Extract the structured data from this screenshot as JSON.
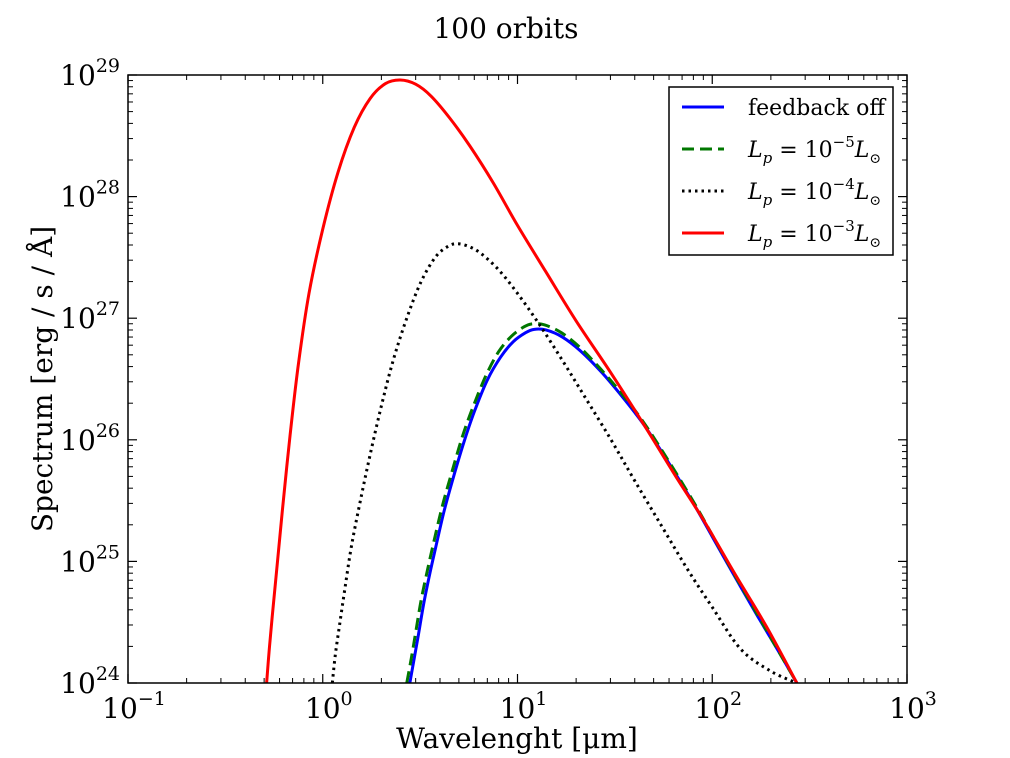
{
  "chart_data": {
    "type": "line",
    "title": "100 orbits",
    "xlabel": "Wavelenght [μm]",
    "ylabel": "Spectrum [erg / s / Å]",
    "xscale": "log",
    "yscale": "log",
    "xlim": [
      0.1,
      1000
    ],
    "ylim": [
      1e+24,
      1e+29
    ],
    "grid": false,
    "legend_position": "top-right",
    "x_ticks": [
      {
        "value": 0.1,
        "base": "10",
        "exp": "−1"
      },
      {
        "value": 1,
        "base": "10",
        "exp": "0"
      },
      {
        "value": 10,
        "base": "10",
        "exp": "1"
      },
      {
        "value": 100,
        "base": "10",
        "exp": "2"
      },
      {
        "value": 1000,
        "base": "10",
        "exp": "3"
      }
    ],
    "y_ticks": [
      {
        "value": 1e+24,
        "base": "10",
        "exp": "24"
      },
      {
        "value": 1e+25,
        "base": "10",
        "exp": "25"
      },
      {
        "value": 1e+26,
        "base": "10",
        "exp": "26"
      },
      {
        "value": 1e+27,
        "base": "10",
        "exp": "27"
      },
      {
        "value": 1e+28,
        "base": "10",
        "exp": "28"
      },
      {
        "value": 1e+29,
        "base": "10",
        "exp": "29"
      }
    ],
    "series": [
      {
        "name": "feedback off",
        "legend_label": {
          "text": "feedback off"
        },
        "color": "#0000ff",
        "linestyle": "solid",
        "peak_wavelength": 12.2,
        "peak_value": 8.1e+26,
        "x": [
          2.8,
          2.95,
          3.1,
          3.3,
          3.55,
          3.8,
          4.2,
          4.7,
          5.3,
          6.0,
          7.0,
          8.2,
          9.5,
          11.0,
          12.2,
          14.0,
          17.0,
          21.0,
          27.0,
          35.0,
          45.0,
          60.0,
          80.0,
          100.0,
          130.0,
          170.0,
          220.0,
          272.0
        ],
        "y": [
          1e+24,
          1.6e+24,
          2.5e+24,
          4.5e+24,
          8e+24,
          1.3e+25,
          2.6e+25,
          5e+25,
          9.5e+25,
          1.7e+26,
          3.1e+26,
          4.8e+26,
          6.4e+26,
          7.6e+26,
          8.1e+26,
          8e+26,
          7e+26,
          5.4e+26,
          3.6e+26,
          2.2e+26,
          1.3e+26,
          6.4e+25,
          3e+25,
          1.6e+25,
          7.6e+24,
          3.6e+24,
          1.8e+24,
          1e+24
        ]
      },
      {
        "name": "L_p = 10^-5 L_sun",
        "legend_label": {
          "base": "L",
          "sub": "p",
          "eq": " = 10",
          "exp": "−5",
          "tail": "L",
          "tail_sub": "⊙"
        },
        "color": "#007700",
        "linestyle": "dashed",
        "peak_wavelength": 12.0,
        "peak_value": 9e+26,
        "x": [
          2.7,
          2.85,
          3.0,
          3.2,
          3.45,
          3.7,
          4.1,
          4.6,
          5.2,
          5.9,
          6.9,
          8.0,
          9.3,
          10.8,
          12.0,
          13.8,
          16.8,
          20.8,
          26.8,
          35.0,
          45.0,
          60.0,
          80.0,
          100.0,
          130.0,
          170.0,
          220.0,
          272.0
        ],
        "y": [
          1e+24,
          1.6e+24,
          2.6e+24,
          4.8e+24,
          8.5e+24,
          1.4e+25,
          2.8e+25,
          5.4e+25,
          1.05e+26,
          1.85e+26,
          3.4e+26,
          5.3e+26,
          7.1e+26,
          8.5e+26,
          9e+26,
          8.8e+26,
          7.6e+26,
          5.8e+26,
          3.8e+26,
          2.3e+26,
          1.35e+26,
          6.6e+25,
          3.1e+25,
          1.65e+25,
          7.8e+24,
          3.7e+24,
          1.8e+24,
          1e+24
        ]
      },
      {
        "name": "L_p = 10^-4 L_sun",
        "legend_label": {
          "base": "L",
          "sub": "p",
          "eq": " = 10",
          "exp": "−4",
          "tail": "L",
          "tail_sub": "⊙"
        },
        "color": "#000000",
        "linestyle": "dotted",
        "peak_wavelength": 4.9,
        "peak_value": 4.1e+27,
        "x": [
          1.12,
          1.16,
          1.22,
          1.3,
          1.4,
          1.55,
          1.75,
          2.0,
          2.3,
          2.7,
          3.2,
          3.8,
          4.4,
          4.9,
          5.6,
          6.5,
          8.0,
          10.0,
          13.0,
          17.0,
          22.0,
          30.0,
          40.0,
          55.0,
          75.0,
          100.0,
          140.0,
          200.0,
          272.0
        ],
        "y": [
          1e+24,
          1.7e+24,
          3e+24,
          6e+24,
          1.3e+25,
          3e+25,
          7.5e+25,
          1.9e+26,
          4.5e+26,
          1e+27,
          2e+27,
          3.2e+27,
          3.9e+27,
          4.1e+27,
          3.9e+27,
          3.4e+27,
          2.5e+27,
          1.6e+27,
          8.8e+26,
          4.5e+26,
          2.3e+26,
          1.02e+26,
          4.6e+25,
          1.95e+25,
          8.5e+24,
          4.2e+24,
          1.9e+24,
          1.25e+24,
          1e+24
        ]
      },
      {
        "name": "L_p = 10^-3 L_sun",
        "legend_label": {
          "base": "L",
          "sub": "p",
          "eq": " = 10",
          "exp": "−3",
          "tail": "L",
          "tail_sub": "⊙"
        },
        "color": "#ff0000",
        "linestyle": "solid",
        "peak_wavelength": 2.5,
        "peak_value": 9.1e+28,
        "x": [
          0.515,
          0.53,
          0.55,
          0.58,
          0.62,
          0.68,
          0.75,
          0.85,
          1.0,
          1.2,
          1.45,
          1.75,
          2.1,
          2.5,
          3.0,
          3.6,
          4.5,
          5.7,
          7.5,
          10.0,
          14.0,
          20.0,
          30.0,
          45.0,
          65.0,
          90.0,
          130.0,
          190.0,
          272.0
        ],
        "y": [
          1e+24,
          1.8e+24,
          3.5e+24,
          8.5e+24,
          2.6e+25,
          1.1e+26,
          4.2e+26,
          1.6e+27,
          5.4e+27,
          1.6e+28,
          3.7e+28,
          6.4e+28,
          8.5e+28,
          9.1e+28,
          8.4e+28,
          6.7e+28,
          4.4e+28,
          2.6e+28,
          1.3e+28,
          5.8e+27,
          2.4e+27,
          9.5e+26,
          3.6e+26,
          1.3e+26,
          5e+25,
          2.2e+25,
          8e+24,
          2.9e+24,
          1e+24
        ]
      }
    ]
  }
}
